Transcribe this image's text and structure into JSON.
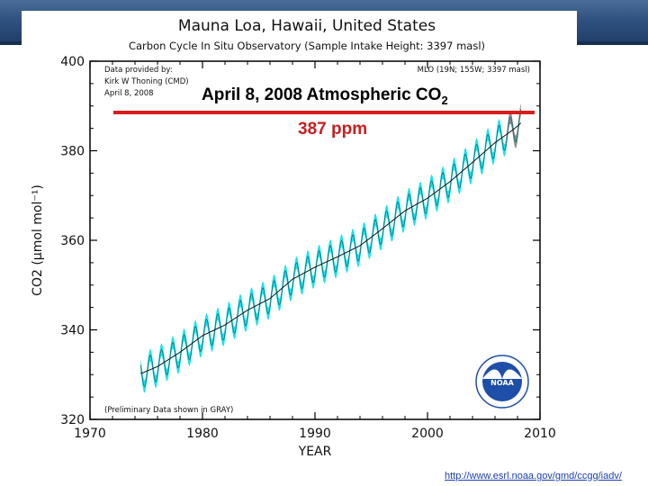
{
  "slide": {
    "url": "http://www.esrl.noaa.gov/gmd/ccgg/iadv/",
    "headline": "April 8, 2008 Atmospheric CO",
    "headline_sub": "2",
    "ppm_label": "387 ppm"
  },
  "chart_data": {
    "type": "line",
    "title": "Mauna Loa, Hawaii, United States",
    "subtitle": "Carbon Cycle In Situ Observatory (Sample Intake Height: 3397 masl)",
    "xlabel": "YEAR",
    "ylabel": "CO2 (µmol mol⁻¹)",
    "xlim": [
      1970,
      2010
    ],
    "ylim": [
      320,
      400
    ],
    "x_ticks": [
      "1970",
      "1980",
      "1990",
      "2000",
      "2010"
    ],
    "y_ticks": [
      "320",
      "340",
      "360",
      "380",
      "400"
    ],
    "annotations": {
      "provider_line1": "Data provided by:",
      "provider_line2": "Kirk W Thoning (CMD)",
      "provider_line3": "April  8, 2008",
      "station": "MLO (19N; 155W; 3397 masl)",
      "preliminary": "(Preliminary Data shown in GRAY)",
      "logo": "NOAA"
    },
    "series": [
      {
        "name": "monthly in situ CO2 (cyan band)",
        "color": "#19e3ee",
        "x": [
          1974.5,
          1976,
          1978,
          1980,
          1982,
          1984,
          1986,
          1988,
          1990,
          1992,
          1994,
          1996,
          1998,
          2000,
          2002,
          2004,
          2006,
          2007
        ],
        "values": [
          330.2,
          331.8,
          335.0,
          338.7,
          341.1,
          344.4,
          347.0,
          351.3,
          354.0,
          356.3,
          358.8,
          362.6,
          366.6,
          369.4,
          373.1,
          377.4,
          381.8,
          383.6
        ]
      },
      {
        "name": "Preliminary (gray)",
        "color": "#8a8a8a",
        "x": [
          2007,
          2007.5,
          2008,
          2008.3
        ],
        "values": [
          383.6,
          384.5,
          385.5,
          386.2
        ]
      }
    ],
    "seasonal_amplitude": 3.2,
    "band_half_width": 1.4,
    "colors": {
      "band": "#19e3ee",
      "trend": "#111111",
      "gray": "#8a8a8a",
      "noaa_blue": "#1d4ea8"
    }
  }
}
